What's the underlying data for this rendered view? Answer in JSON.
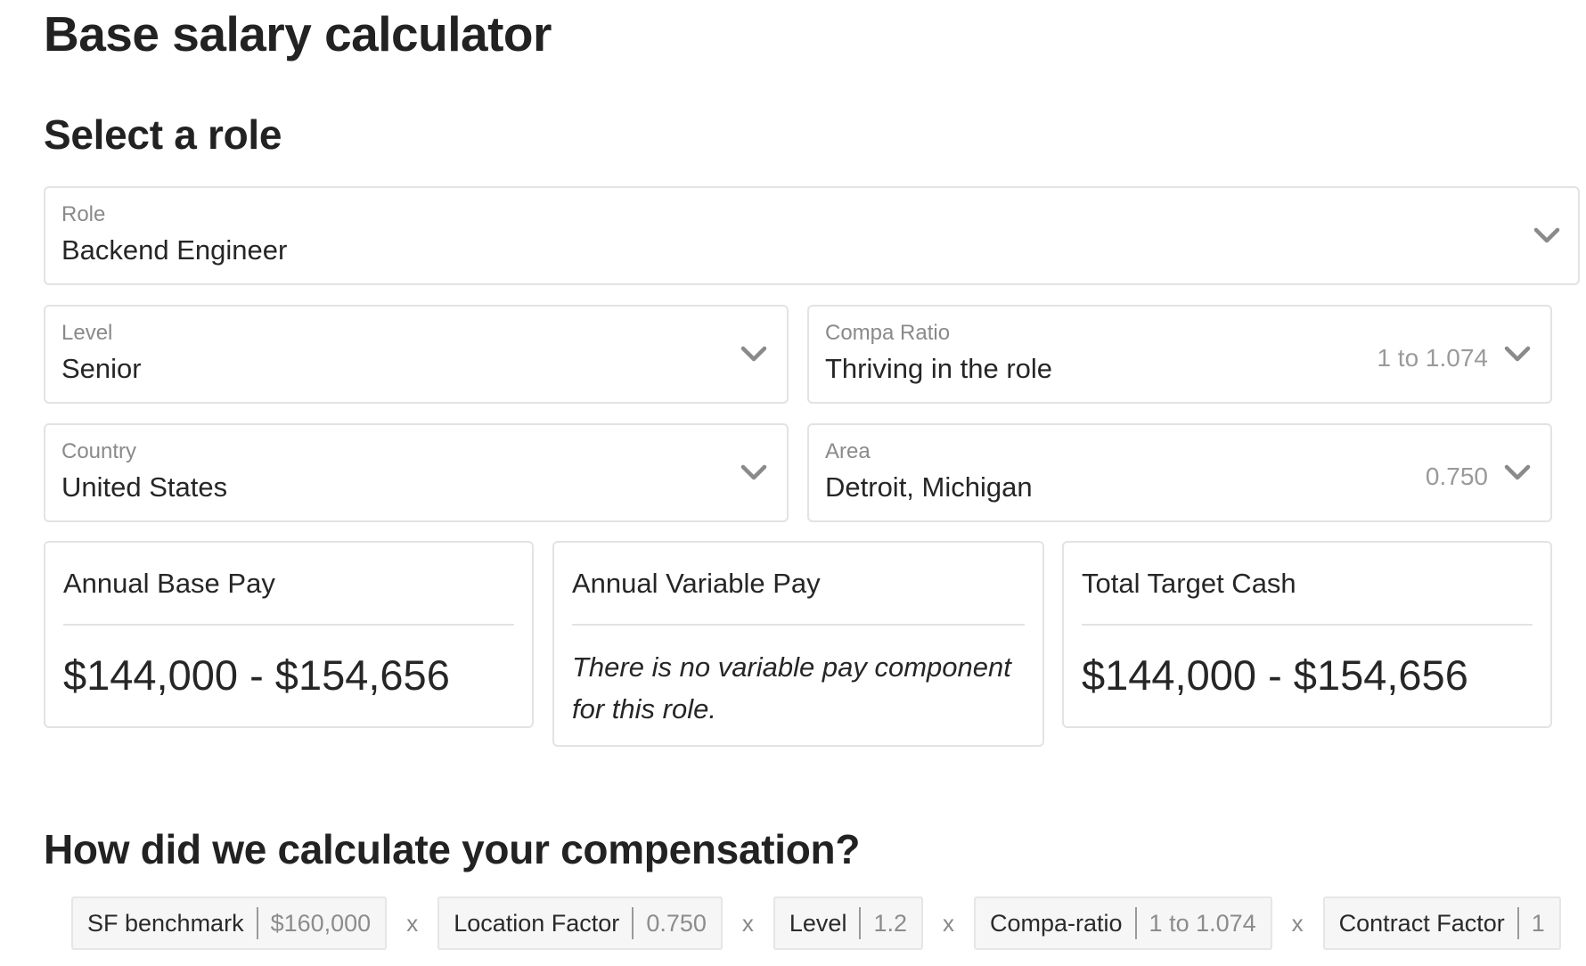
{
  "page": {
    "title": "Base salary calculator",
    "select_heading": "Select a role",
    "calc_heading": "How did we calculate your compensation?"
  },
  "role": {
    "label": "Role",
    "value": "Backend Engineer"
  },
  "level": {
    "label": "Level",
    "value": "Senior"
  },
  "compa_ratio": {
    "label": "Compa Ratio",
    "value": "Thriving in the role",
    "hint": "1 to 1.074"
  },
  "country": {
    "label": "Country",
    "value": "United States"
  },
  "area": {
    "label": "Area",
    "value": "Detroit, Michigan",
    "hint": "0.750"
  },
  "cards": {
    "base": {
      "title": "Annual Base Pay",
      "amount": "$144,000 - $154,656"
    },
    "variable": {
      "title": "Annual Variable Pay",
      "note": "There is no variable pay component for this role."
    },
    "total": {
      "title": "Total Target Cash",
      "amount": "$144,000 - $154,656"
    }
  },
  "formula": {
    "operator": "x",
    "terms": [
      {
        "key": "SF benchmark",
        "value": "$160,000"
      },
      {
        "key": "Location Factor",
        "value": "0.750"
      },
      {
        "key": "Level",
        "value": "1.2"
      },
      {
        "key": "Compa-ratio",
        "value": "1 to 1.074"
      },
      {
        "key": "Contract Factor",
        "value": "1"
      }
    ]
  },
  "icons": {
    "dropdown": "chevron-down-icon"
  },
  "colors": {
    "border": "#e3e3e3",
    "muted_text": "#8a8a8a",
    "chip_bg": "#f6f6f6"
  }
}
